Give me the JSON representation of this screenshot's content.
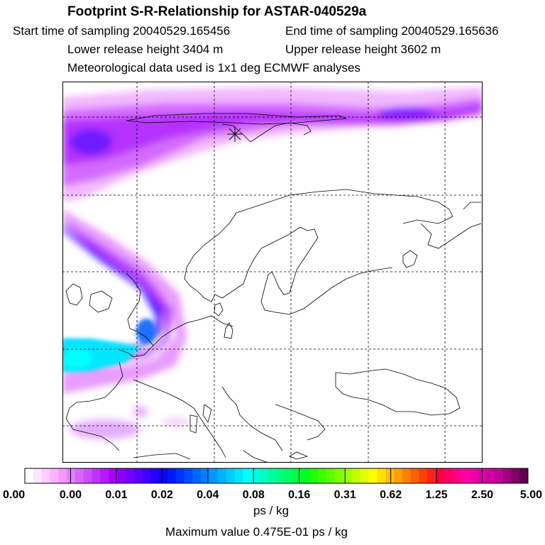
{
  "header": {
    "title": "Footprint S-R-Relationship for ASTAR-040529a",
    "start_time": "Start time of sampling 20040529.165456",
    "end_time": "End time of sampling 20040529.165636",
    "lower_height": "Lower release height 3404 m",
    "upper_height": "Upper release height 3602 m",
    "met_data": "Meteorological data used is 1x1 deg ECMWF analyses"
  },
  "colorbar": {
    "labels": [
      "0.00",
      "0.00",
      "0.01",
      "0.02",
      "0.04",
      "0.08",
      "0.16",
      "0.31",
      "0.62",
      "1.25",
      "2.50",
      "5.00"
    ],
    "colors": [
      "#ffffff",
      "#ffe6ff",
      "#ffccff",
      "#ffb3ff",
      "#f399ff",
      "#e680ff",
      "#d966ff",
      "#cc4dff",
      "#bf33ff",
      "#b31aff",
      "#a600ff",
      "#8c00ff",
      "#7300ff",
      "#5900ff",
      "#3f00ff",
      "#2600ff",
      "#0d00ff",
      "#0019ff",
      "#0033ff",
      "#004dff",
      "#0066ff",
      "#0080ff",
      "#0099ff",
      "#00b3ff",
      "#00ccff",
      "#00e6ff",
      "#00ffff",
      "#00ffe0",
      "#00ffc0",
      "#00ffa0",
      "#00ff80",
      "#00ff60",
      "#00ff40",
      "#00ff20",
      "#20ff00",
      "#40ff00",
      "#60ff00",
      "#80ff00",
      "#a0ff00",
      "#c0ff00",
      "#e0ff00",
      "#ffff00",
      "#ffe000",
      "#ffc000",
      "#ffa000",
      "#ff8000",
      "#ff6000",
      "#ff4000",
      "#ff2020",
      "#ff0040",
      "#ff0060",
      "#ff0080",
      "#ff00a0",
      "#f000a8",
      "#e000a8",
      "#d000a0",
      "#c00098",
      "#a00080",
      "#800068",
      "#600050"
    ],
    "unit": "ps / kg"
  },
  "footer": {
    "max_value": "Maximum value  0.475E-01 ps / kg"
  }
}
